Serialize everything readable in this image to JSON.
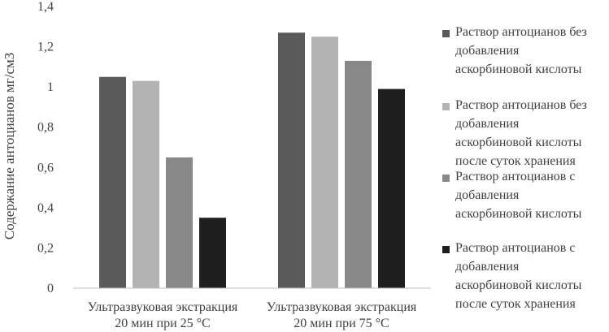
{
  "chart_data": {
    "type": "bar",
    "title": "",
    "xlabel": "",
    "ylabel": "Содержание антоцианов мг/см3",
    "ylim": [
      0,
      1.4
    ],
    "yticks": [
      "0",
      "0,2",
      "0,4",
      "0,6",
      "0,8",
      "1",
      "1,2",
      "1,4"
    ],
    "grid": false,
    "legend_position": "right",
    "categories": [
      [
        "Ультразвуковая экстракция",
        "20 мин при 25 °С"
      ],
      [
        "Ультразвуковая экстракция",
        "20 мин при 75 °С"
      ]
    ],
    "series": [
      {
        "name": "Раствор антоцианов без\nдобавления\nаскорбиновой кислоты",
        "color": "#5a5a5a",
        "values": [
          1.05,
          1.27
        ]
      },
      {
        "name": "Раствор антоцианов без\nдобавления\nаскорбиновой кислоты\nпосле суток хранения",
        "color": "#b3b3b3",
        "values": [
          1.03,
          1.25
        ]
      },
      {
        "name": "Раствор антоцианов с\nдобавления\nаскорбиновой кислоты",
        "color": "#888888",
        "values": [
          0.65,
          1.13
        ]
      },
      {
        "name": "Раствор антоцианов с\nдобавления\nаскорбиновой кислоты\nпосле суток хранения",
        "color": "#1f1f1f",
        "values": [
          0.35,
          0.99
        ]
      }
    ]
  }
}
